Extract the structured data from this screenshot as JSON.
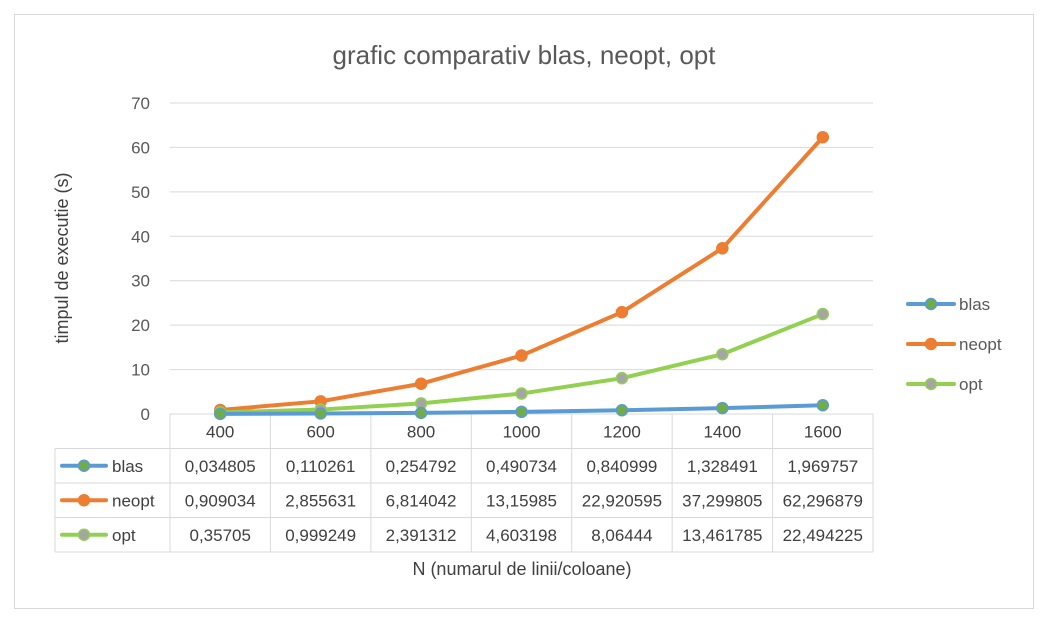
{
  "chart_data": {
    "type": "line",
    "title": "grafic comparativ blas, neopt, opt",
    "xlabel": "N (numarul de linii/coloane)",
    "ylabel": "timpul de executie (s)",
    "ylim": [
      0,
      70
    ],
    "yticks": [
      0,
      10,
      20,
      30,
      40,
      50,
      60,
      70
    ],
    "grid": true,
    "legend_position": "right",
    "categories": [
      "400",
      "600",
      "800",
      "1000",
      "1200",
      "1400",
      "1600"
    ],
    "series": [
      {
        "name": "blas",
        "color": "#5b9bd5",
        "marker_color": "#70ad47",
        "values": [
          0.034805,
          0.110261,
          0.254792,
          0.490734,
          0.840999,
          1.328491,
          1.969757
        ],
        "labels": [
          "0,034805",
          "0,110261",
          "0,254792",
          "0,490734",
          "0,840999",
          "1,328491",
          "1,969757"
        ]
      },
      {
        "name": "neopt",
        "color": "#ed7d31",
        "marker_color": "#ed7d31",
        "values": [
          0.909034,
          2.855631,
          6.814042,
          13.15985,
          22.920595,
          37.299805,
          62.296879
        ],
        "labels": [
          "0,909034",
          "2,855631",
          "6,814042",
          "13,15985",
          "22,920595",
          "37,299805",
          "62,296879"
        ]
      },
      {
        "name": "opt",
        "color": "#92d050",
        "marker_color": "#a5a5a5",
        "values": [
          0.35705,
          0.999249,
          2.391312,
          4.603198,
          8.06444,
          13.461785,
          22.494225
        ],
        "labels": [
          "0,35705",
          "0,999249",
          "2,391312",
          "4,603198",
          "8,06444",
          "13,461785",
          "22,494225"
        ]
      }
    ]
  }
}
